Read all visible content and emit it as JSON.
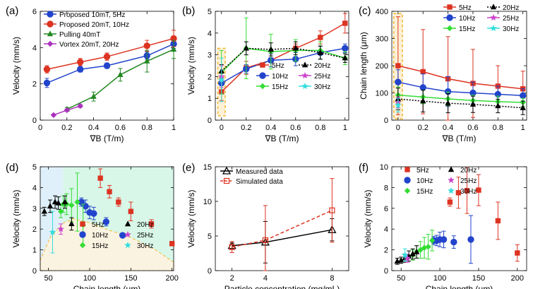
{
  "colors": {
    "5Hz": "#dd3322",
    "10Hz": "#2244cc",
    "15Hz": "#33dd33",
    "20Hz": "#000000",
    "25Hz": "#cc44cc",
    "30Hz": "#33dddd",
    "proposed10": "#2244cc",
    "proposed20": "#dd3322",
    "pulling": "#228822",
    "vortex": "#aa33bb",
    "measured": "#000000",
    "simulated": "#dd3322",
    "region_blue": "#dff0fa",
    "region_green": "#d8f7e8",
    "region_beige": "#fbf3e1",
    "highlight": "#f2b632"
  },
  "chart_data": [
    {
      "panel": "a",
      "panel_label": "(a)",
      "type": "line",
      "xlabel": "∇B (T/m)",
      "ylabel": "Velocity (mm/s)",
      "xlim": [
        0,
        1
      ],
      "ylim": [
        0,
        6
      ],
      "xticks": [
        "0",
        "0.2",
        "0.4",
        "0.6",
        "0.8",
        "1"
      ],
      "yticks": [
        "0",
        "2",
        "4",
        "6"
      ],
      "legend": [
        "Proposed 10mT, 5Hz",
        "Proposed 20mT, 10Hz",
        "Pulling 40mT",
        "Vortex 20mT, 20Hz"
      ],
      "series": [
        {
          "name": "Proposed 10mT, 5Hz",
          "color_key": "proposed10",
          "marker": "circle",
          "x": [
            0.05,
            0.3,
            0.5,
            0.8,
            1.0
          ],
          "values": [
            2.05,
            2.8,
            3.0,
            3.55,
            4.2
          ],
          "err": [
            0.25,
            0.15,
            0.15,
            0.2,
            0.25
          ]
        },
        {
          "name": "Proposed 20mT, 10Hz",
          "color_key": "proposed20",
          "marker": "circle",
          "x": [
            0.05,
            0.3,
            0.5,
            0.8,
            1.0
          ],
          "values": [
            2.8,
            3.2,
            3.5,
            4.1,
            4.5
          ],
          "err": [
            0.2,
            0.2,
            0.2,
            0.3,
            0.45
          ]
        },
        {
          "name": "Pulling 40mT",
          "color_key": "pulling",
          "marker": "triangle",
          "x": [
            0.2,
            0.4,
            0.6,
            0.8,
            1.0
          ],
          "values": [
            0.6,
            1.3,
            2.5,
            3.25,
            3.9
          ],
          "err": [
            0.1,
            0.25,
            0.35,
            0.6,
            0.5
          ]
        },
        {
          "name": "Vortex 20mT, 20Hz",
          "color_key": "vortex",
          "marker": "diamond",
          "x": [
            0.1,
            0.2,
            0.3
          ],
          "values": [
            0.28,
            0.55,
            0.78
          ],
          "err": [
            0.05,
            0.05,
            0.08
          ]
        }
      ]
    },
    {
      "panel": "b",
      "panel_label": "(b)",
      "type": "line",
      "xlabel": "∇B (T/m)",
      "ylabel": "Velocity (mm/s)",
      "xlim": [
        -0.05,
        1.03
      ],
      "ylim": [
        0,
        5
      ],
      "xticks": [
        "0",
        "0.2",
        "0.4",
        "0.6",
        "0.8",
        "1"
      ],
      "yticks": [
        "0",
        "1",
        "2",
        "3",
        "4",
        "5"
      ],
      "legend": [
        "5Hz",
        "20Hz",
        "10Hz",
        "25Hz",
        "15Hz",
        "30Hz"
      ],
      "series": [
        {
          "name": "5Hz",
          "color_key": "5Hz",
          "marker": "square",
          "x": [
            0,
            0.2,
            0.4,
            0.6,
            0.8,
            1.0
          ],
          "values": [
            1.3,
            2.4,
            2.75,
            3.3,
            3.8,
            4.45
          ],
          "err": [
            0.4,
            0.3,
            0.3,
            0.2,
            0.3,
            0.45
          ]
        },
        {
          "name": "10Hz",
          "color_key": "10Hz",
          "marker": "circle",
          "x": [
            0,
            0.2,
            0.4,
            0.6,
            0.8,
            1.0
          ],
          "values": [
            1.7,
            2.35,
            2.75,
            2.8,
            3.1,
            3.3
          ],
          "err": [
            0.5,
            0.2,
            0.3,
            0.3,
            0.3,
            0.2
          ]
        },
        {
          "name": "15Hz",
          "color_key": "15Hz",
          "marker": "diamond",
          "x": [
            0,
            0.2,
            0.4,
            0.6,
            0.8,
            1.0
          ],
          "values": [
            2.2,
            3.3,
            3.15,
            3.2,
            3.2,
            2.85
          ],
          "err": [
            1.0,
            1.4,
            0.8,
            0.5,
            0.4,
            0.3
          ]
        },
        {
          "name": "20Hz",
          "color_key": "20Hz",
          "marker": "triangle",
          "dashed": true,
          "x": [
            0,
            0.2,
            0.4,
            0.6,
            0.8,
            1.0
          ],
          "values": [
            2.25,
            3.3,
            3.25,
            3.3,
            3.1,
            2.85
          ],
          "err": [
            0.3,
            0.3,
            0.3,
            0.3,
            0.3,
            0.2
          ]
        },
        {
          "name": "25Hz",
          "color_key": "25Hz",
          "marker": "star",
          "x": [
            0
          ],
          "values": [
            2.0
          ],
          "err": [
            0.5
          ]
        },
        {
          "name": "30Hz",
          "color_key": "30Hz",
          "marker": "star",
          "x": [
            0
          ],
          "values": [
            1.85
          ],
          "err": [
            1.0
          ]
        }
      ]
    },
    {
      "panel": "c",
      "panel_label": "(c)",
      "type": "line",
      "xlabel": "∇B (T/m)",
      "ylabel": "Chain length (μm)",
      "xlim": [
        -0.05,
        1.03
      ],
      "ylim": [
        0,
        400
      ],
      "xticks": [
        "0",
        "0.2",
        "0.4",
        "0.6",
        "0.8",
        "1"
      ],
      "yticks": [
        "0",
        "100",
        "200",
        "300",
        "400"
      ],
      "legend": [
        "5Hz",
        "20Hz",
        "10Hz",
        "25Hz",
        "15Hz",
        "30Hz"
      ],
      "series": [
        {
          "name": "5Hz",
          "color_key": "5Hz",
          "marker": "square",
          "x": [
            0,
            0.2,
            0.4,
            0.6,
            0.8,
            1.0
          ],
          "values": [
            200,
            178,
            152,
            135,
            125,
            115
          ],
          "err": [
            180,
            155,
            155,
            125,
            75,
            65
          ]
        },
        {
          "name": "10Hz",
          "color_key": "10Hz",
          "marker": "circle",
          "x": [
            0,
            0.2,
            0.4,
            0.6,
            0.8,
            1.0
          ],
          "values": [
            140,
            120,
            105,
            100,
            95,
            90
          ],
          "err": [
            45,
            50,
            55,
            40,
            30,
            25
          ]
        },
        {
          "name": "15Hz",
          "color_key": "15Hz",
          "marker": "diamond",
          "x": [
            0,
            0.2,
            0.4,
            0.6,
            0.8,
            1.0
          ],
          "values": [
            92,
            85,
            78,
            72,
            68,
            65
          ],
          "err": [
            30,
            25,
            25,
            20,
            20,
            15
          ]
        },
        {
          "name": "20Hz",
          "color_key": "20Hz",
          "marker": "triangle",
          "dashed": true,
          "x": [
            0,
            0.2,
            0.4,
            0.6,
            0.8,
            1.0
          ],
          "values": [
            78,
            70,
            62,
            58,
            52,
            45
          ],
          "err": [
            40,
            40,
            35,
            30,
            25,
            25
          ]
        },
        {
          "name": "25Hz",
          "color_key": "25Hz",
          "marker": "star",
          "x": [
            0
          ],
          "values": [
            65
          ],
          "err": [
            20
          ]
        },
        {
          "name": "30Hz",
          "color_key": "30Hz",
          "marker": "star",
          "x": [
            0
          ],
          "values": [
            55
          ],
          "err": [
            25
          ]
        }
      ]
    },
    {
      "panel": "d",
      "panel_label": "(d)",
      "type": "scatter",
      "xlabel": "Chain length (μm)",
      "ylabel": "Velocity (mm/s)",
      "xlim": [
        40,
        202
      ],
      "ylim": [
        0,
        5
      ],
      "xticks": [
        "50",
        "100",
        "150",
        "200"
      ],
      "xtick_values": [
        50,
        100,
        150,
        200
      ],
      "yticks": [
        "0",
        "1",
        "2",
        "3",
        "4",
        "5"
      ],
      "legend": [
        "5Hz",
        "20Hz",
        "10Hz",
        "25Hz",
        "15Hz",
        "30Hz"
      ],
      "regions": [
        "blue region: chain length below ~68 μm",
        "green region: chain length above ~68 μm",
        "beige region: below dashed boundary"
      ],
      "series": [
        {
          "name": "5Hz",
          "color_key": "5Hz",
          "marker": "square",
          "x": [
            113,
            124,
            135,
            150,
            175,
            200
          ],
          "values": [
            4.45,
            3.8,
            3.3,
            2.85,
            2.25,
            1.3
          ],
          "err": [
            0.45,
            0.3,
            0.2,
            0.45,
            0.2,
            0.1
          ]
        },
        {
          "name": "10Hz",
          "color_key": "10Hz",
          "marker": "circle",
          "x": [
            90,
            95,
            100,
            105,
            120,
            140
          ],
          "values": [
            3.3,
            3.1,
            2.8,
            2.75,
            2.35,
            1.7
          ],
          "err": [
            0.2,
            0.3,
            0.3,
            0.3,
            0.2,
            0.1
          ]
        },
        {
          "name": "15Hz",
          "color_key": "15Hz",
          "marker": "diamond",
          "x": [
            65,
            68,
            72,
            78,
            85,
            92
          ],
          "values": [
            2.85,
            3.2,
            3.2,
            3.15,
            3.3,
            2.2
          ],
          "err": [
            0.3,
            0.4,
            0.5,
            0.8,
            1.4,
            1.0
          ]
        },
        {
          "name": "20Hz",
          "color_key": "20Hz",
          "marker": "triangle",
          "x": [
            45,
            52,
            58,
            62,
            70,
            78
          ],
          "values": [
            2.85,
            3.1,
            3.3,
            3.25,
            3.3,
            2.25
          ],
          "err": [
            0.2,
            0.3,
            0.3,
            0.3,
            0.3,
            0.3
          ]
        },
        {
          "name": "25Hz",
          "color_key": "25Hz",
          "marker": "star",
          "x": [
            65
          ],
          "values": [
            2.0
          ],
          "err": [
            0.25
          ]
        },
        {
          "name": "30Hz",
          "color_key": "30Hz",
          "marker": "star",
          "x": [
            55
          ],
          "values": [
            1.85
          ],
          "err": [
            1.0
          ]
        }
      ]
    },
    {
      "panel": "e",
      "panel_label": "(e)",
      "type": "line",
      "xlabel": "Particle concentration (mg/mL)",
      "ylabel": "Velocity (mm/s)",
      "xlim": [
        1,
        9
      ],
      "ylim": [
        0,
        15
      ],
      "xticks": [
        "2",
        "4",
        "8"
      ],
      "ytick_values": [
        0,
        5,
        10,
        15
      ],
      "yticks": [
        "0",
        "5",
        "10",
        "15"
      ],
      "legend": [
        "Measured data",
        "Simulated data"
      ],
      "series": [
        {
          "name": "Measured data",
          "color_key": "measured",
          "marker": "triangle-open",
          "x": [
            2,
            4,
            8
          ],
          "values": [
            3.6,
            4.1,
            5.9
          ],
          "err": [
            0.4,
            3.0,
            1.6
          ]
        },
        {
          "name": "Simulated data",
          "color_key": "simulated",
          "marker": "square-open",
          "dashed": true,
          "x": [
            2,
            4,
            8
          ],
          "values": [
            3.4,
            4.4,
            8.7
          ],
          "err": [
            0.8,
            5.0,
            4.6
          ]
        }
      ]
    },
    {
      "panel": "f",
      "panel_label": "(f)",
      "type": "scatter",
      "xlabel": "Chain length (μm)",
      "ylabel": "Velocity (mm/s)",
      "xlim": [
        38,
        212
      ],
      "ylim": [
        0,
        10
      ],
      "xticks": [
        "50",
        "100",
        "150",
        "200"
      ],
      "xtick_values": [
        50,
        100,
        150,
        200
      ],
      "yticks": [
        "0",
        "2",
        "4",
        "6",
        "8",
        "10"
      ],
      "legend": [
        "5Hz",
        "20Hz",
        "10Hz",
        "25Hz",
        "15Hz",
        "30Hz"
      ],
      "series": [
        {
          "name": "5Hz",
          "color_key": "5Hz",
          "marker": "square",
          "x": [
            113,
            124,
            135,
            150,
            175,
            200
          ],
          "values": [
            6.6,
            7.5,
            7.7,
            7.75,
            4.8,
            1.7
          ],
          "err": [
            0.4,
            1.5,
            2.2,
            1.5,
            1.8,
            0.8
          ]
        },
        {
          "name": "10Hz",
          "color_key": "10Hz",
          "marker": "circle",
          "x": [
            92,
            96,
            100,
            105,
            118,
            140
          ],
          "values": [
            2.9,
            2.9,
            3.0,
            3.0,
            2.75,
            3.0
          ],
          "err": [
            0.4,
            0.5,
            0.7,
            0.8,
            0.6,
            2.3
          ]
        },
        {
          "name": "15Hz",
          "color_key": "15Hz",
          "marker": "diamond",
          "x": [
            65,
            70,
            75,
            80,
            85,
            90
          ],
          "values": [
            1.5,
            1.8,
            2.0,
            2.2,
            2.3,
            2.9
          ],
          "err": [
            0.5,
            0.6,
            0.8,
            1.0,
            1.2,
            1.0
          ]
        },
        {
          "name": "20Hz",
          "color_key": "20Hz",
          "marker": "triangle",
          "x": [
            45,
            50,
            55,
            60,
            65,
            70
          ],
          "values": [
            0.9,
            1.0,
            1.2,
            1.4,
            1.6,
            1.8
          ],
          "err": [
            0.3,
            0.3,
            0.4,
            0.5,
            0.5,
            0.6
          ]
        },
        {
          "name": "25Hz",
          "color_key": "25Hz",
          "marker": "star",
          "x": [
            58
          ],
          "values": [
            1.2
          ],
          "err": [
            0.4
          ]
        },
        {
          "name": "30Hz",
          "color_key": "30Hz",
          "marker": "star",
          "x": [
            55
          ],
          "values": [
            1.5
          ],
          "err": [
            0.6
          ]
        }
      ]
    }
  ]
}
